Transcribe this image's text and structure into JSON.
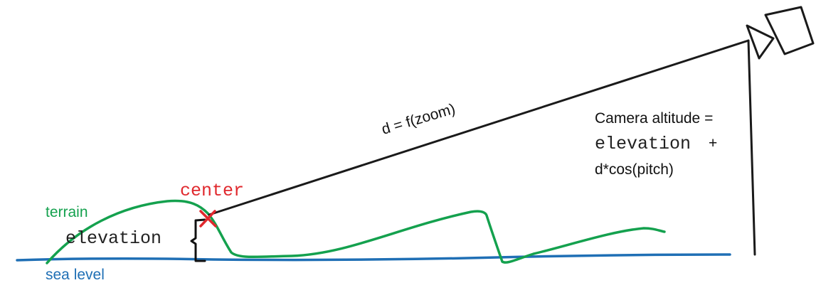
{
  "labels": {
    "terrain": "terrain",
    "sea_level": "sea level",
    "center": "center",
    "elevation": "elevation",
    "distance": "d = f(zoom)",
    "camera_altitude_line1": "Camera altitude =",
    "camera_altitude_line2": "elevation",
    "camera_altitude_plus": "+",
    "camera_altitude_line3": "d*cos(pitch)"
  },
  "colors": {
    "terrain": "#14a14e",
    "sea_level": "#1f6fb5",
    "center_marker": "#e0282d",
    "ink": "#1a1a1a"
  },
  "icons": {
    "camera": "camera-icon",
    "center_marker": "x-mark-icon"
  }
}
